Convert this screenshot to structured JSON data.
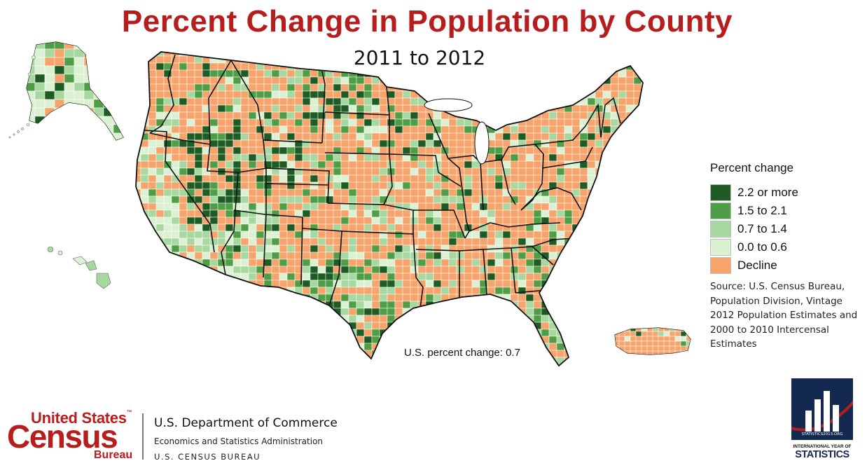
{
  "title": "Percent Change in Population by County",
  "subtitle": "2011 to 2012",
  "legend": {
    "title": "Percent change",
    "items": [
      {
        "label": "2.2 or more",
        "color": "#1e5c24"
      },
      {
        "label": "1.5 to 2.1",
        "color": "#4f9e45"
      },
      {
        "label": "0.7 to 1.4",
        "color": "#a7d8a0"
      },
      {
        "label": "0.0 to 0.6",
        "color": "#dcf0d2"
      },
      {
        "label": "Decline",
        "color": "#f6a46b"
      }
    ]
  },
  "source_text": "Source: U.S. Census Bureau, Population Division, Vintage 2012 Population Estimates and 2000 to 2010 Intercensal Estimates",
  "us_change_text": "U.S. percent change: 0.7",
  "footer": {
    "census_logo": {
      "line1": "United States",
      "tm": "™",
      "line2": "Census",
      "line3": "Bureau"
    },
    "dept_name": "U.S. Department of Commerce",
    "dept_sub": "Economics and Statistics Administration",
    "dept_sub2": "U.S. CENSUS BUREAU"
  },
  "stats_logo": {
    "url": "STATISTICS2013.ORG",
    "line1": "INTERNATIONAL YEAR OF",
    "line2": "STATISTICS"
  },
  "colors": {
    "title": "#b81d1d",
    "border": "#111111",
    "county_line": "#ffffff",
    "stats_navy": "#14294f"
  }
}
